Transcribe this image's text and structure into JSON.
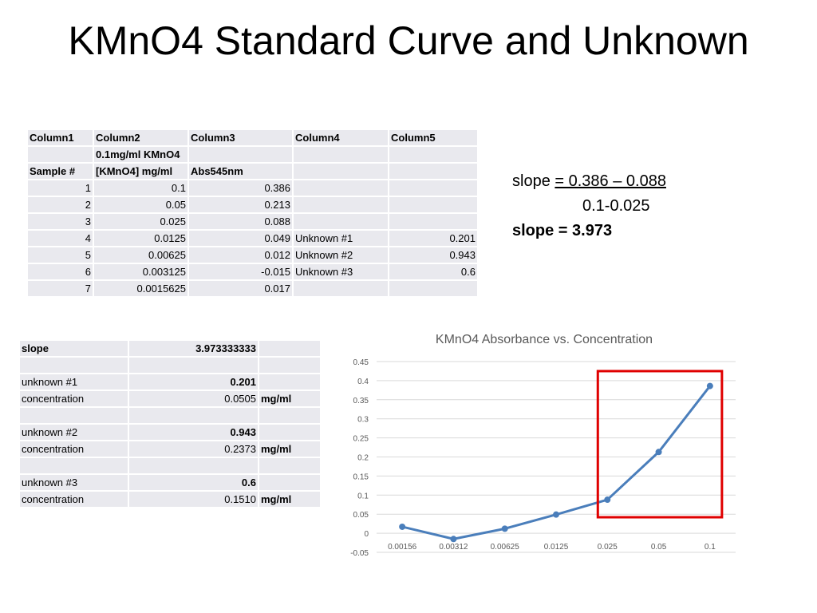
{
  "title": "KMnO4 Standard Curve and Unknown",
  "table1": {
    "headers": [
      "Column1",
      "Column2",
      "Column3",
      "Column4",
      "Column5"
    ],
    "row_sub": [
      "",
      "0.1mg/ml KMnO4",
      "",
      "",
      ""
    ],
    "row_head": [
      "Sample #",
      "[KMnO4] mg/ml",
      "Abs545nm",
      "",
      ""
    ],
    "rows": [
      [
        "1",
        "0.1",
        "0.386",
        "",
        ""
      ],
      [
        "2",
        "0.05",
        "0.213",
        "",
        ""
      ],
      [
        "3",
        "0.025",
        "0.088",
        "",
        ""
      ],
      [
        "4",
        "0.0125",
        "0.049",
        "Unknown #1",
        "0.201"
      ],
      [
        "5",
        "0.00625",
        "0.012",
        "Unknown #2",
        "0.943"
      ],
      [
        "6",
        "0.003125",
        "-0.015",
        "Unknown #3",
        "0.6"
      ],
      [
        "7",
        "0.0015625",
        "0.017",
        "",
        ""
      ]
    ]
  },
  "slope_calc": {
    "label": "slope",
    "eq": "= 0.386 – 0.088",
    "denom": "0.1-0.025",
    "result": "slope = 3.973"
  },
  "table2": {
    "rows": [
      [
        "slope",
        "3.973333333",
        ""
      ],
      [
        "",
        "",
        ""
      ],
      [
        "unknown #1",
        "0.201",
        ""
      ],
      [
        "concentration",
        "0.0505",
        "mg/ml"
      ],
      [
        "",
        "",
        ""
      ],
      [
        "unknown #2",
        "0.943",
        ""
      ],
      [
        "concentration",
        "0.2373",
        "mg/ml"
      ],
      [
        "",
        "",
        ""
      ],
      [
        "unknown #3",
        "0.6",
        ""
      ],
      [
        "concentration",
        "0.1510",
        "mg/ml"
      ]
    ]
  },
  "chart_data": {
    "type": "line",
    "title": "KMnO4 Absorbance vs. Concentration",
    "categories": [
      "0.00156",
      "0.00312",
      "0.00625",
      "0.0125",
      "0.025",
      "0.05",
      "0.1"
    ],
    "values": [
      0.017,
      -0.015,
      0.012,
      0.049,
      0.088,
      0.213,
      0.386
    ],
    "ylim": [
      -0.05,
      0.45
    ],
    "yticks": [
      "-0.05",
      "0",
      "0.05",
      "0.1",
      "0.15",
      "0.2",
      "0.25",
      "0.3",
      "0.35",
      "0.4",
      "0.45"
    ],
    "grid": true,
    "series_color": "#4a7ebb",
    "highlight": {
      "from": "0.025",
      "to": "0.1",
      "color": "#e00000"
    }
  }
}
